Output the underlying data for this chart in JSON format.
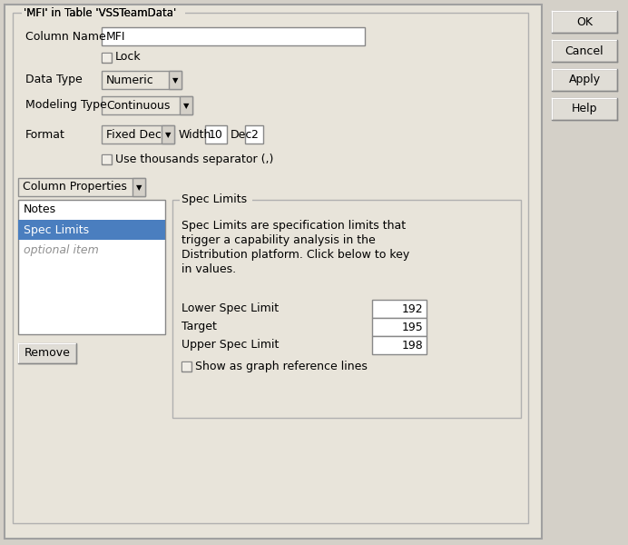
{
  "bg_color": "#d4d0c8",
  "dialog_bg": "#e8e4da",
  "panel_bg": "#e8e4da",
  "white": "#ffffff",
  "title": "'MFI' in Table 'VSSTeamData'",
  "column_name_label": "Column Name",
  "column_name_value": "MFI",
  "lock_label": "Lock",
  "data_type_label": "Data Type",
  "data_type_value": "Numeric",
  "modeling_type_label": "Modeling Type",
  "modeling_type_value": "Continuous",
  "format_label": "Format",
  "format_value": "Fixed Dec",
  "width_label": "Width",
  "width_value": "10",
  "dec_label": "Dec",
  "dec_value": "2",
  "thousands_label": "Use thousands separator (,)",
  "col_props_label": "Column Properties",
  "list_items": [
    "Notes",
    "Spec Limits",
    "optional item"
  ],
  "selected_item": 1,
  "selected_color": "#4a7ebf",
  "spec_limits_title": "Spec Limits",
  "spec_desc": "Spec Limits are specification limits that\ntrigger a capability analysis in the\nDistribution platform. Click below to key\nin values.",
  "lower_label": "Lower Spec Limit",
  "lower_value": "192",
  "target_label": "Target",
  "target_value": "195",
  "upper_label": "Upper Spec Limit",
  "upper_value": "198",
  "show_ref_label": "Show as graph reference lines",
  "remove_label": "Remove",
  "ok_label": "OK",
  "cancel_label": "Cancel",
  "apply_label": "Apply",
  "help_label": "Help",
  "text_color": "#000000",
  "border_color": "#808080",
  "button_color": "#e0ddd6",
  "figw": 6.92,
  "figh": 6.0,
  "dpi": 100
}
